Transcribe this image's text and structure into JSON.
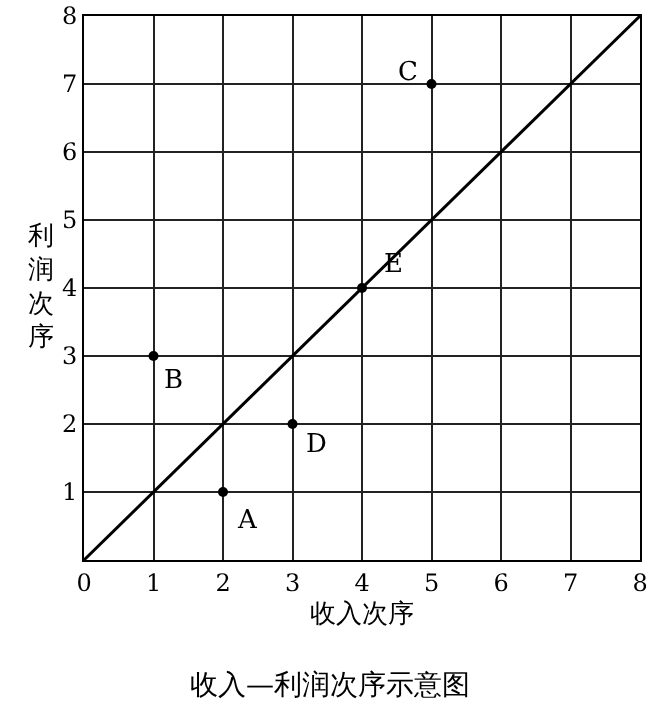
{
  "chart_data": {
    "type": "scatter",
    "title": "收入—利润次序示意图",
    "xlabel": "收入次序",
    "ylabel": "利润次序",
    "xlim": [
      0,
      8
    ],
    "ylim": [
      0,
      8
    ],
    "xticks": [
      0,
      1,
      2,
      3,
      4,
      5,
      6,
      7,
      8
    ],
    "yticks": [
      {
        "value": 0,
        "label": null
      },
      1,
      2,
      3,
      4,
      5,
      6,
      7,
      8
    ],
    "grid": true,
    "marker": "circle",
    "series": [
      {
        "type": "line",
        "marker": "none",
        "color": "#000000",
        "x": [
          0,
          8
        ],
        "values": [
          0,
          8
        ]
      },
      {
        "color": "#000000",
        "x": [
          2,
          1,
          5,
          3,
          4
        ],
        "values": [
          1,
          3,
          7,
          2,
          4
        ]
      }
    ],
    "annotations": [
      {
        "text": "A",
        "x": 2,
        "y": 1
      },
      {
        "text": "B",
        "x": 1,
        "y": 3
      },
      {
        "text": "C",
        "x": 5,
        "y": 7
      },
      {
        "text": "D",
        "x": 3,
        "y": 2
      },
      {
        "text": "E",
        "x": 4,
        "y": 4
      }
    ]
  }
}
